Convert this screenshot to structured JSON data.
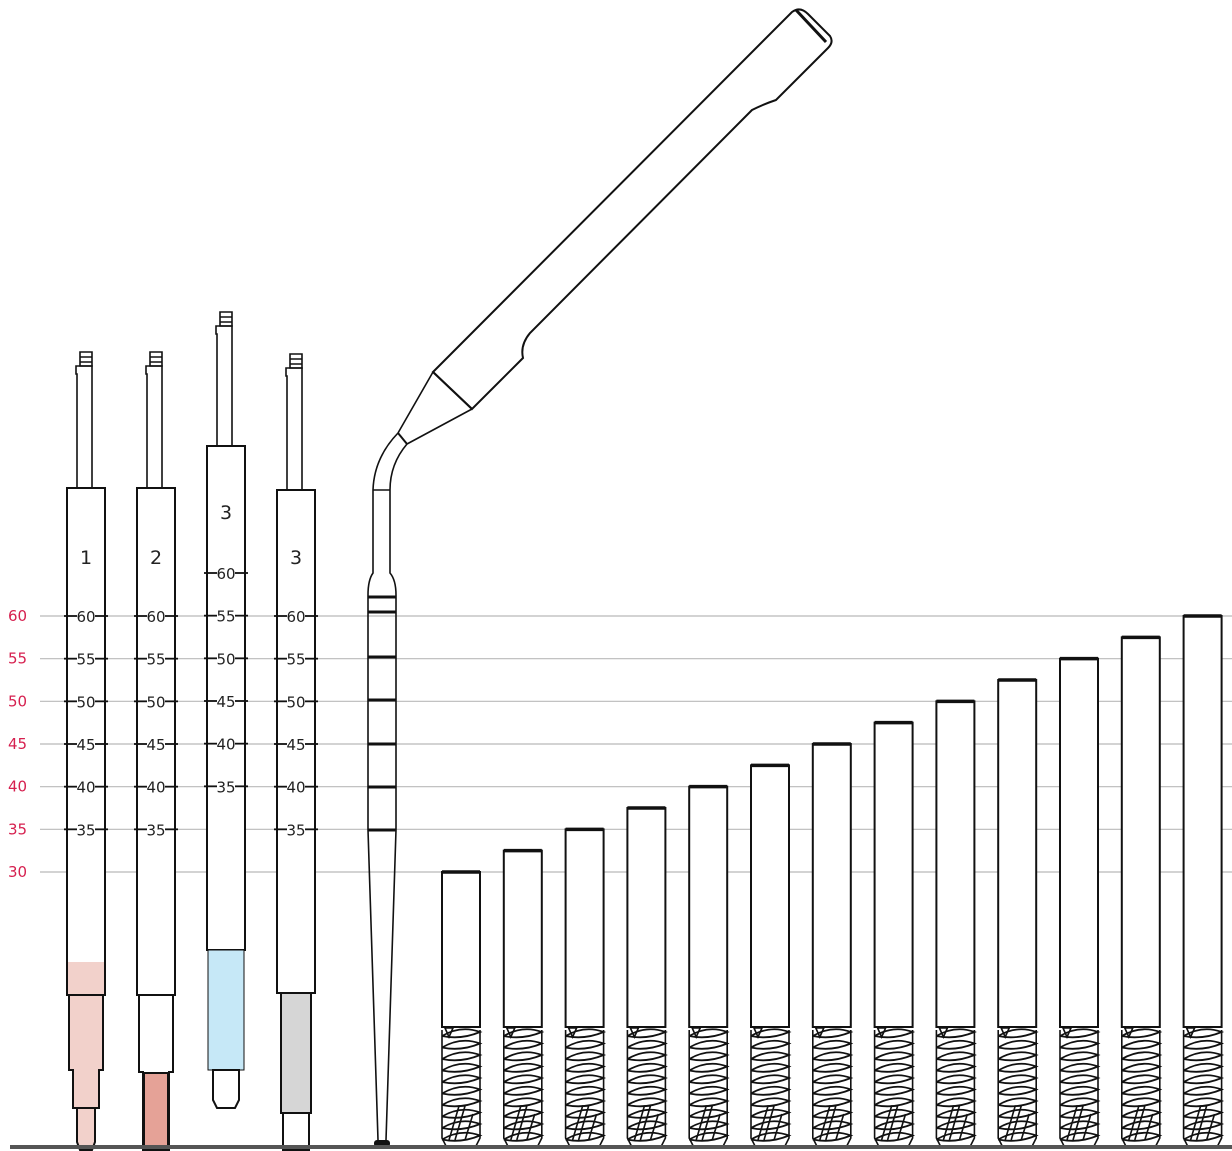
{
  "colors": {
    "scale_text": "#d6204f",
    "grid_line": "#b9b9b9",
    "baseline": "#555555",
    "outline": "#111111",
    "light_pink": "#f2d1cb",
    "salmon": "#e5a297",
    "light_blue": "#c6e8f7",
    "light_gray": "#d6d6d6"
  },
  "reference_scale": [
    "60",
    "55",
    "50",
    "45",
    "40",
    "35",
    "30"
  ],
  "drivers": [
    {
      "number": "1",
      "marks": [
        "60",
        "55",
        "50",
        "45",
        "40",
        "35"
      ],
      "tip_color": "light_pink"
    },
    {
      "number": "2",
      "marks": [
        "60",
        "55",
        "50",
        "45",
        "40",
        "35"
      ],
      "tip_color": "salmon"
    },
    {
      "number": "3",
      "marks": [
        "60",
        "55",
        "50",
        "45",
        "40",
        "35"
      ],
      "tip_color": "light_blue"
    },
    {
      "number": "3",
      "marks": [
        "60",
        "55",
        "50",
        "45",
        "40",
        "35"
      ],
      "tip_color": "light_gray"
    }
  ],
  "angled_instrument": {
    "icon": "angled-depth-probe-icon"
  },
  "implants": {
    "icon": "threaded-implant-icon",
    "lengths": [
      30,
      32.5,
      35,
      37.5,
      40,
      42.5,
      45,
      47.5,
      50,
      52.5,
      55,
      57.5,
      60
    ]
  }
}
